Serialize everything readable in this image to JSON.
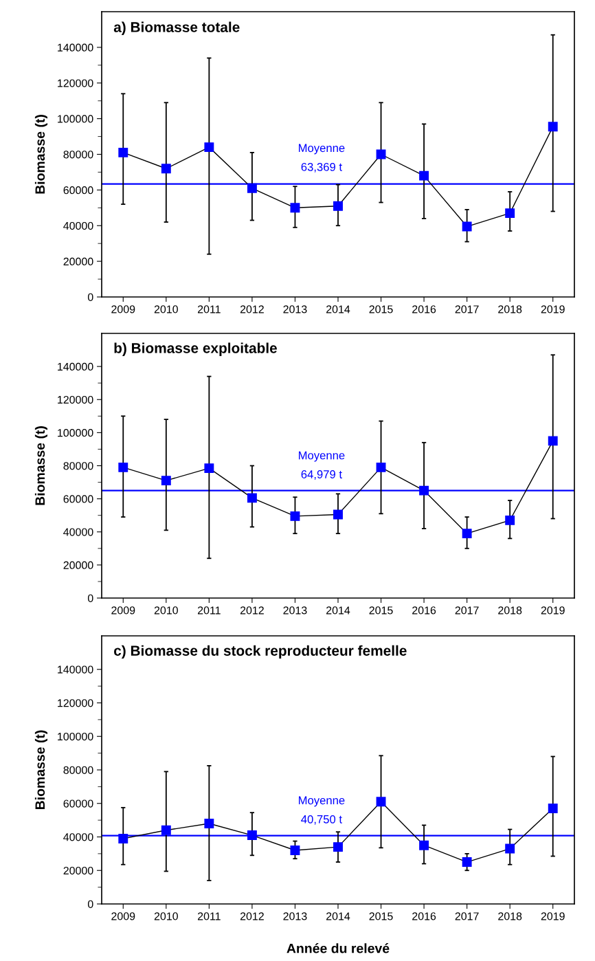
{
  "chart_data": [
    {
      "type": "line",
      "title": "a) Biomasse totale",
      "ylabel": "Biomasse (t)",
      "categories": [
        "2009",
        "2010",
        "2011",
        "2012",
        "2013",
        "2014",
        "2015",
        "2016",
        "2017",
        "2018",
        "2019"
      ],
      "ylim": [
        0,
        160000
      ],
      "yticks": [
        0,
        20000,
        40000,
        60000,
        80000,
        100000,
        120000,
        140000
      ],
      "marker": "square",
      "grid": false,
      "series": [
        {
          "color": "#0000ff",
          "values": [
            81000,
            72000,
            84000,
            61000,
            50000,
            51000,
            80000,
            68000,
            39500,
            47000,
            95500
          ],
          "errors": [
            [
              52000,
              114000
            ],
            [
              42000,
              109000
            ],
            [
              24000,
              134000
            ],
            [
              43000,
              81000
            ],
            [
              39000,
              62000
            ],
            [
              40000,
              63000
            ],
            [
              53000,
              109000
            ],
            [
              44000,
              97000
            ],
            [
              31000,
              49000
            ],
            [
              37000,
              59000
            ],
            [
              48000,
              147000
            ]
          ]
        }
      ],
      "ref_lines": [
        {
          "axis": "y",
          "value": 63369,
          "label": "Moyenne\n63,369 t",
          "color": "#0000ff"
        }
      ]
    },
    {
      "type": "line",
      "title": "b) Biomasse exploitable",
      "ylabel": "Biomasse (t)",
      "categories": [
        "2009",
        "2010",
        "2011",
        "2012",
        "2013",
        "2014",
        "2015",
        "2016",
        "2017",
        "2018",
        "2019"
      ],
      "ylim": [
        0,
        160000
      ],
      "yticks": [
        0,
        20000,
        40000,
        60000,
        80000,
        100000,
        120000,
        140000
      ],
      "marker": "square",
      "grid": false,
      "series": [
        {
          "color": "#0000ff",
          "values": [
            79000,
            71000,
            78500,
            60500,
            49500,
            50500,
            79000,
            65000,
            39000,
            47000,
            95000
          ],
          "errors": [
            [
              49000,
              110000
            ],
            [
              41000,
              108000
            ],
            [
              24000,
              134000
            ],
            [
              43000,
              80000
            ],
            [
              39000,
              61000
            ],
            [
              39000,
              63000
            ],
            [
              51000,
              107000
            ],
            [
              42000,
              94000
            ],
            [
              30000,
              49000
            ],
            [
              36000,
              59000
            ],
            [
              48000,
              147000
            ]
          ]
        }
      ],
      "ref_lines": [
        {
          "axis": "y",
          "value": 64979,
          "label": "Moyenne\n64,979 t",
          "color": "#0000ff"
        }
      ]
    },
    {
      "type": "line",
      "title": "c) Biomasse du stock reproducteur femelle",
      "ylabel": "Biomasse (t)",
      "xlabel": "Année du relevé",
      "categories": [
        "2009",
        "2010",
        "2011",
        "2012",
        "2013",
        "2014",
        "2015",
        "2016",
        "2017",
        "2018",
        "2019"
      ],
      "ylim": [
        0,
        160000
      ],
      "yticks": [
        0,
        20000,
        40000,
        60000,
        80000,
        100000,
        120000,
        140000
      ],
      "marker": "square",
      "grid": false,
      "series": [
        {
          "color": "#0000ff",
          "values": [
            39000,
            44000,
            48000,
            41000,
            32000,
            34000,
            61000,
            35000,
            25000,
            33000,
            57000
          ],
          "errors": [
            [
              23500,
              57500
            ],
            [
              19500,
              79000
            ],
            [
              14000,
              82500
            ],
            [
              29000,
              54500
            ],
            [
              27000,
              37500
            ],
            [
              25000,
              43000
            ],
            [
              33500,
              88500
            ],
            [
              24000,
              47000
            ],
            [
              20000,
              30000
            ],
            [
              23500,
              44500
            ],
            [
              28500,
              88000
            ]
          ]
        }
      ],
      "ref_lines": [
        {
          "axis": "y",
          "value": 40750,
          "label": "Moyenne\n40,750 t",
          "color": "#0000ff"
        }
      ]
    }
  ]
}
